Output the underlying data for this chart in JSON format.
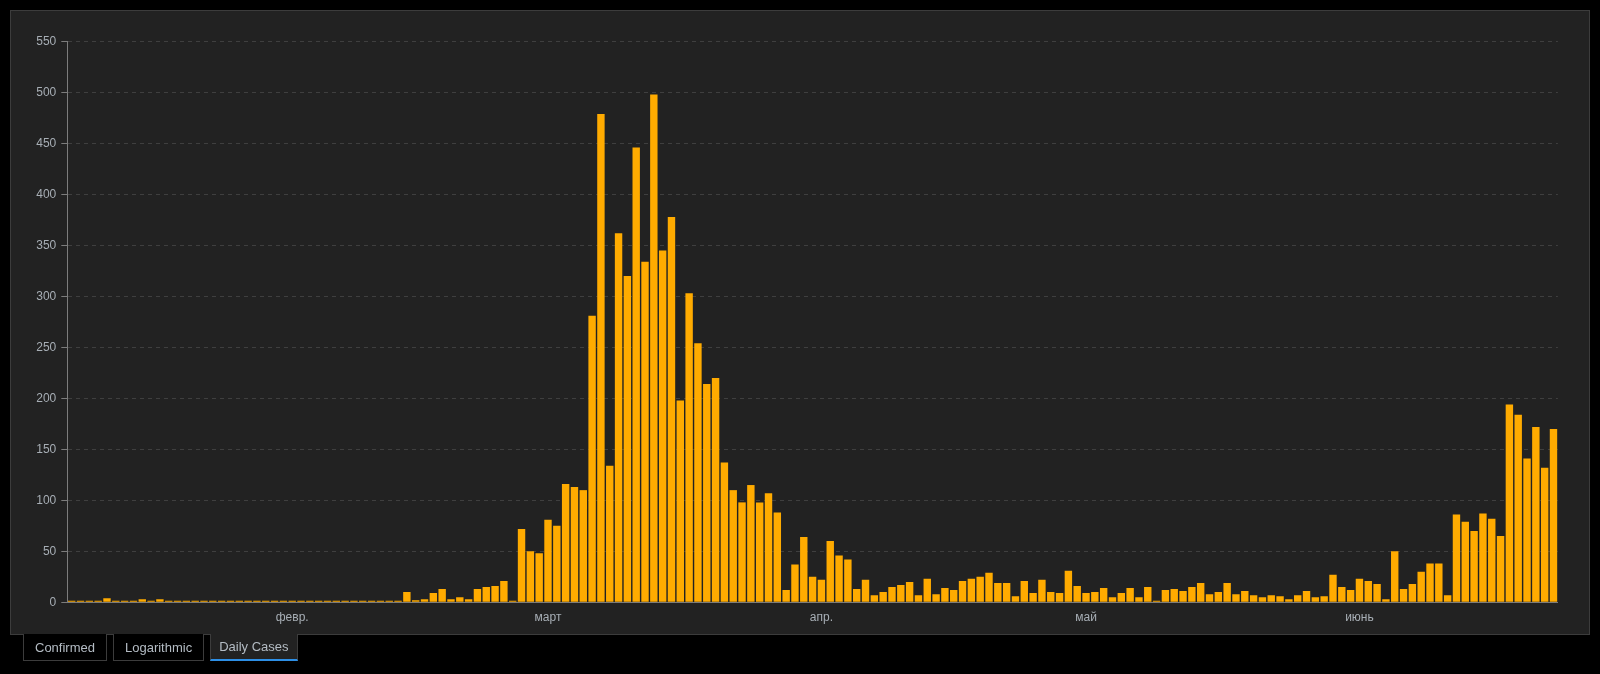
{
  "chart_data": {
    "type": "bar",
    "categories": [
      null,
      null,
      null,
      null,
      null,
      null,
      null,
      null,
      null,
      null,
      null,
      null,
      null,
      null,
      null,
      null,
      null,
      null,
      null,
      null,
      null,
      null,
      null,
      null,
      null,
      "февр.",
      null,
      null,
      null,
      null,
      null,
      null,
      null,
      null,
      null,
      null,
      null,
      null,
      null,
      null,
      null,
      null,
      null,
      null,
      null,
      null,
      null,
      null,
      null,
      null,
      null,
      null,
      null,
      null,
      "март",
      null,
      null,
      null,
      null,
      null,
      null,
      null,
      null,
      null,
      null,
      null,
      null,
      null,
      null,
      null,
      null,
      null,
      null,
      null,
      null,
      null,
      null,
      null,
      null,
      null,
      null,
      null,
      null,
      null,
      null,
      "апр.",
      null,
      null,
      null,
      null,
      null,
      null,
      null,
      null,
      null,
      null,
      null,
      null,
      null,
      null,
      null,
      null,
      null,
      null,
      null,
      null,
      null,
      null,
      null,
      null,
      null,
      null,
      null,
      null,
      null,
      "май",
      null,
      null,
      null,
      null,
      null,
      null,
      null,
      null,
      null,
      null,
      null,
      null,
      null,
      null,
      null,
      null,
      null,
      null,
      null,
      null,
      null,
      null,
      null,
      null,
      null,
      null,
      null,
      null,
      null,
      null,
      "июнь",
      null,
      null,
      null,
      null,
      null,
      null,
      null,
      null,
      null,
      null,
      null,
      null,
      null,
      null,
      null,
      null,
      null,
      null,
      null,
      null,
      null,
      null
    ],
    "values": [
      0,
      0,
      0,
      0,
      4,
      1,
      0,
      1,
      3,
      0,
      3,
      0,
      0,
      1,
      0,
      1,
      1,
      0,
      0,
      0,
      0,
      0,
      0,
      0,
      0,
      0,
      0,
      0,
      0,
      0,
      0,
      0,
      0,
      0,
      0,
      0,
      0,
      0,
      10,
      2,
      3,
      9,
      13,
      3,
      5,
      3,
      13,
      15,
      16,
      21,
      0,
      72,
      50,
      48,
      81,
      75,
      116,
      113,
      110,
      281,
      479,
      134,
      362,
      320,
      446,
      334,
      498,
      345,
      378,
      198,
      303,
      254,
      214,
      220,
      137,
      110,
      98,
      115,
      98,
      107,
      88,
      12,
      37,
      64,
      25,
      22,
      60,
      46,
      42,
      13,
      22,
      7,
      10,
      15,
      17,
      20,
      7,
      23,
      8,
      14,
      12,
      21,
      23,
      25,
      29,
      19,
      19,
      6,
      21,
      9,
      22,
      10,
      9,
      31,
      16,
      9,
      10,
      14,
      5,
      9,
      14,
      5,
      15,
      0,
      12,
      13,
      11,
      15,
      19,
      8,
      10,
      19,
      8,
      11,
      7,
      5,
      7,
      6,
      3,
      7,
      11,
      5,
      6,
      27,
      15,
      12,
      23,
      21,
      18,
      3,
      50,
      13,
      18,
      30,
      38,
      38,
      7,
      86,
      79,
      70,
      87,
      82,
      65,
      194,
      184,
      141,
      172,
      132,
      170
    ],
    "color": "#ffab00",
    "ylim": [
      0,
      550
    ],
    "yticks": [
      0,
      50,
      100,
      150,
      200,
      250,
      300,
      350,
      400,
      450,
      500,
      550
    ],
    "grid": "y",
    "annotations": [
      "Confirmed",
      "Logarithmic",
      "Daily Cases"
    ]
  }
}
